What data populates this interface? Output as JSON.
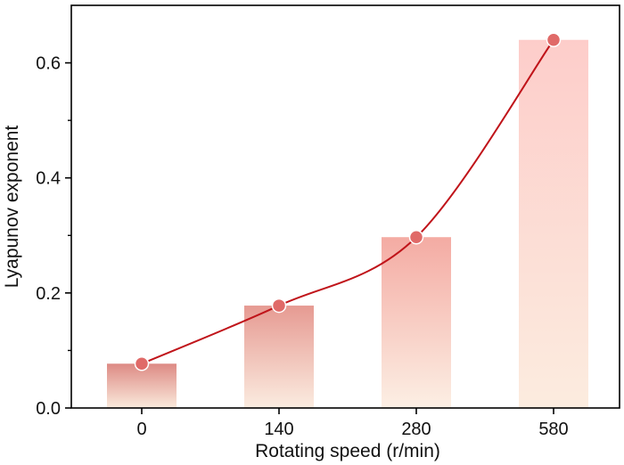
{
  "chart_data": {
    "type": "bar",
    "categories": [
      "0",
      "140",
      "280",
      "580"
    ],
    "values": [
      0.077,
      0.178,
      0.297,
      0.64
    ],
    "line_overlay": true,
    "xlabel": "Rotating speed (r/min)",
    "ylabel": "Lyapunov exponent",
    "ylim": [
      0.0,
      0.7
    ],
    "yticks": [
      {
        "value": 0.0,
        "label": "0.0"
      },
      {
        "value": 0.2,
        "label": "0.2"
      },
      {
        "value": 0.4,
        "label": "0.4"
      },
      {
        "value": 0.6,
        "label": "0.6"
      }
    ],
    "y_minor_ticks": [
      0.1,
      0.3,
      0.5
    ],
    "grid": false,
    "legend": "none",
    "colors": {
      "line": "#c0141a",
      "marker_fill": "#e06a68",
      "marker_stroke": "#ffffff",
      "bar_gradients": [
        {
          "top": "#dd8a84",
          "bottom": "#faeadc"
        },
        {
          "top": "#e69a92",
          "bottom": "#fbece0"
        },
        {
          "top": "#f4aba3",
          "bottom": "#fcefe4"
        },
        {
          "top": "#fdcdca",
          "bottom": "#fcecdf"
        }
      ]
    }
  }
}
